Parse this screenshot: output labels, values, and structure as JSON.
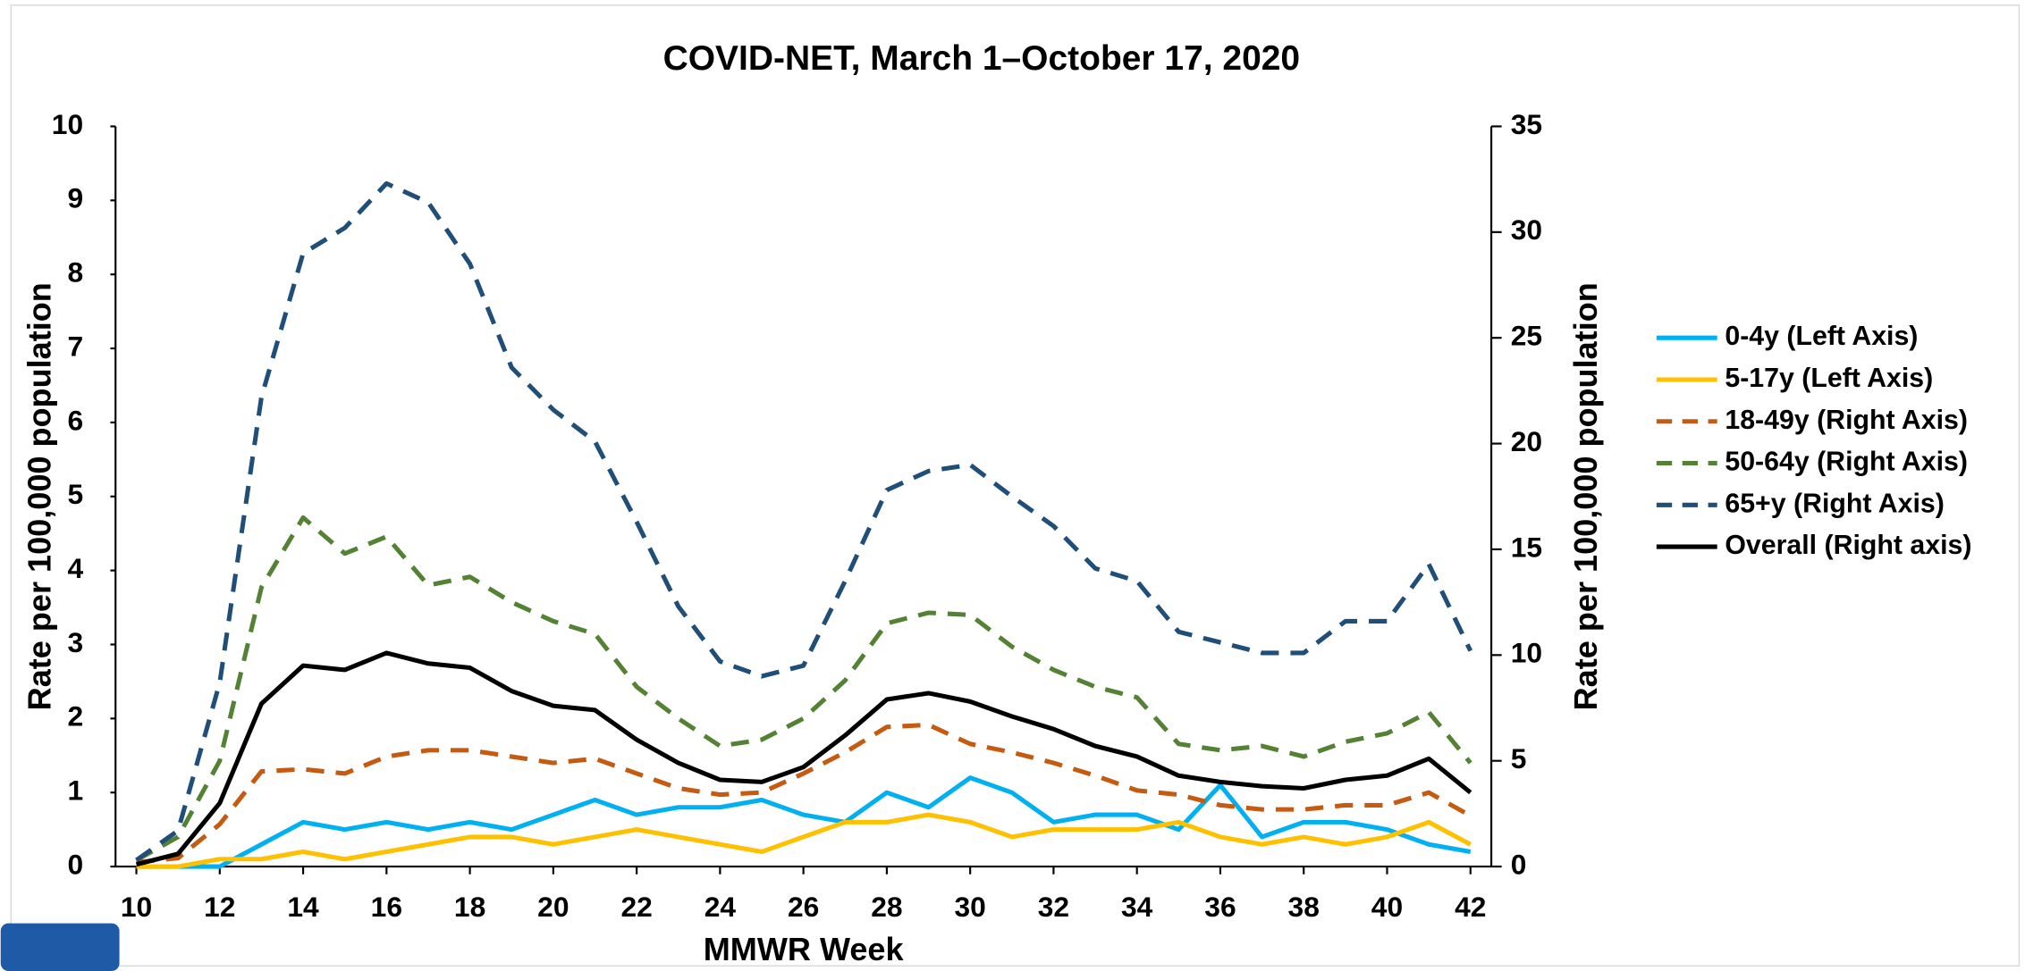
{
  "chart_data": {
    "type": "line",
    "title": "COVID-NET, March 1–October 17, 2020",
    "xlabel": "MMWR Week",
    "ylabel": "Rate per 100,000 population",
    "y2label": "Rate per 100,000 population",
    "x": [
      10,
      11,
      12,
      13,
      14,
      15,
      16,
      17,
      18,
      19,
      20,
      21,
      22,
      23,
      24,
      25,
      26,
      27,
      28,
      29,
      30,
      31,
      32,
      33,
      34,
      35,
      36,
      37,
      38,
      39,
      40,
      41,
      42
    ],
    "xlim": [
      9.5,
      42.5
    ],
    "xticks": [
      10,
      12,
      14,
      16,
      18,
      20,
      22,
      24,
      26,
      28,
      30,
      32,
      34,
      36,
      38,
      40,
      42
    ],
    "ylim": [
      0,
      10
    ],
    "yticks": [
      0,
      1,
      2,
      3,
      4,
      5,
      6,
      7,
      8,
      9,
      10
    ],
    "y2lim": [
      0,
      35
    ],
    "y2ticks": [
      0,
      5,
      10,
      15,
      20,
      25,
      30,
      35
    ],
    "legend": "right",
    "series": [
      {
        "name": "0-4y (Left Axis)",
        "color": "#00b0f0",
        "linestyle": "solid",
        "values": [
          0,
          0,
          0,
          0.3,
          0.6,
          0.5,
          0.6,
          0.5,
          0.6,
          0.5,
          0.7,
          0.9,
          0.7,
          0.8,
          0.8,
          0.9,
          0.7,
          0.6,
          1.0,
          0.8,
          1.2,
          1.0,
          0.6,
          0.7,
          0.7,
          0.5,
          1.1,
          0.4,
          0.6,
          0.6,
          0.5,
          0.3,
          0.2
        ]
      },
      {
        "name": "5-17y (Left Axis)",
        "color": "#ffc000",
        "linestyle": "solid",
        "values": [
          0,
          0,
          0.1,
          0.1,
          0.2,
          0.1,
          0.2,
          0.3,
          0.4,
          0.4,
          0.3,
          0.4,
          0.5,
          0.4,
          0.3,
          0.2,
          0.4,
          0.6,
          0.6,
          0.7,
          0.6,
          0.4,
          0.5,
          0.5,
          0.5,
          0.6,
          0.4,
          0.3,
          0.4,
          0.3,
          0.4,
          0.6,
          0.3
        ]
      },
      {
        "name": "18-49y (Right Axis)",
        "color": "#c55a11",
        "linestyle": "dashed",
        "axis": "y2",
        "values": [
          0.2,
          0.4,
          2.0,
          4.5,
          4.6,
          4.4,
          5.2,
          5.5,
          5.5,
          5.2,
          4.9,
          5.1,
          4.4,
          3.7,
          3.4,
          3.5,
          4.4,
          5.4,
          6.6,
          6.7,
          5.8,
          5.4,
          4.9,
          4.3,
          3.6,
          3.4,
          2.9,
          2.7,
          2.7,
          2.9,
          2.9,
          3.5,
          2.4
        ]
      },
      {
        "name": "50-64y (Right Axis)",
        "color": "#548235",
        "linestyle": "dashed",
        "axis": "y2",
        "values": [
          0.3,
          1.4,
          5.0,
          13.2,
          16.5,
          14.8,
          15.6,
          13.3,
          13.7,
          12.5,
          11.6,
          11.0,
          8.5,
          7.0,
          5.7,
          6.0,
          7.0,
          8.8,
          11.5,
          12.0,
          11.9,
          10.4,
          9.3,
          8.5,
          8.0,
          5.8,
          5.5,
          5.7,
          5.2,
          5.9,
          6.3,
          7.3,
          4.9
        ]
      },
      {
        "name": "65+y (Right Axis)",
        "color": "#1f4e79",
        "linestyle": "dashed",
        "axis": "y2",
        "values": [
          0.3,
          1.7,
          8.7,
          22.2,
          29.0,
          30.2,
          32.3,
          31.4,
          28.5,
          23.6,
          21.6,
          20.1,
          16.3,
          12.3,
          9.7,
          9.0,
          9.5,
          13.5,
          17.8,
          18.7,
          19.0,
          17.5,
          16.1,
          14.1,
          13.5,
          11.1,
          10.6,
          10.1,
          10.1,
          11.6,
          11.6,
          14.3,
          10.2
        ]
      },
      {
        "name": "Overall (Right axis)",
        "color": "#000000",
        "linestyle": "solid",
        "axis": "y2",
        "values": [
          0.1,
          0.6,
          3.0,
          7.7,
          9.5,
          9.3,
          10.1,
          9.6,
          9.4,
          8.3,
          7.6,
          7.4,
          6.0,
          4.9,
          4.1,
          4.0,
          4.7,
          6.2,
          7.9,
          8.2,
          7.8,
          7.1,
          6.5,
          5.7,
          5.2,
          4.3,
          4.0,
          3.8,
          3.7,
          4.1,
          4.3,
          5.1,
          3.5
        ]
      }
    ]
  }
}
